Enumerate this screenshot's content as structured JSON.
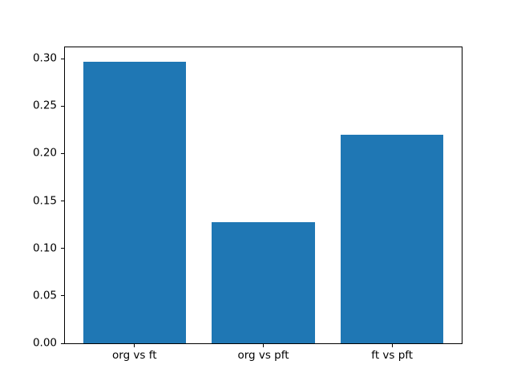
{
  "figure": {
    "background": "#ffffff"
  },
  "chart_data": {
    "type": "bar",
    "categories": [
      "org vs ft",
      "org vs pft",
      "ft vs pft"
    ],
    "values": [
      0.297,
      0.128,
      0.22
    ],
    "title": "",
    "xlabel": "",
    "ylabel": "",
    "ylim": [
      0,
      0.312
    ],
    "xlim": [
      -0.54,
      2.54
    ],
    "yticks": [
      0.0,
      0.05,
      0.1,
      0.15,
      0.2,
      0.25,
      0.3
    ],
    "ytick_labels": [
      "0.00",
      "0.05",
      "0.10",
      "0.15",
      "0.20",
      "0.25",
      "0.30"
    ],
    "bar_width": 0.8,
    "bar_color": "#1f77b4",
    "axis_color": "#000000",
    "text_color": "#000000",
    "grid": false,
    "legend": null
  }
}
